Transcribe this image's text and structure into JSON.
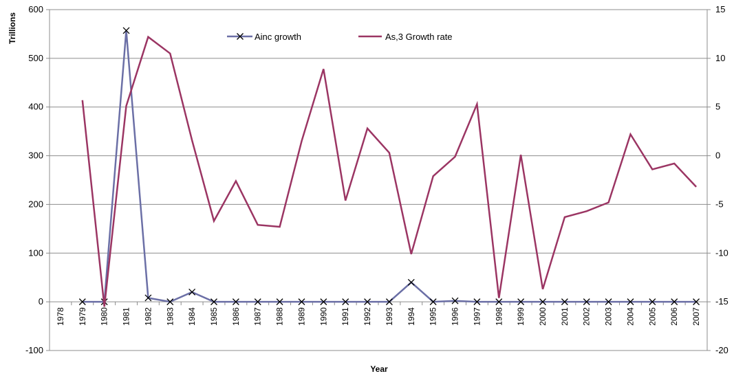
{
  "chart_data": {
    "type": "line",
    "xlabel": "Year",
    "ylabel_left": "Trillions",
    "ylabel_right": "",
    "y_left_lim": [
      -100,
      600
    ],
    "y_right_lim": [
      -20,
      15
    ],
    "y_left_ticks": [
      "-100",
      "0",
      "100",
      "200",
      "300",
      "400",
      "500",
      "600"
    ],
    "y_right_ticks": [
      "-20",
      "-15",
      "-10",
      "-5",
      "0",
      "5",
      "10",
      "15"
    ],
    "grid": "horizontal",
    "legend_position": "top-center",
    "x": [
      "1978",
      "1979",
      "1980",
      "1981",
      "1982",
      "1983",
      "1984",
      "1985",
      "1986",
      "1987",
      "1988",
      "1989",
      "1990",
      "1991",
      "1992",
      "1993",
      "1994",
      "1995",
      "1996",
      "1997",
      "1998",
      "1999",
      "2000",
      "2001",
      "2002",
      "2003",
      "2004",
      "2005",
      "2006",
      "2007"
    ],
    "series": [
      {
        "name": "Ainc growth",
        "axis": "left",
        "color": "#6b6fa6",
        "marker": "x",
        "values": [
          null,
          0,
          0,
          557,
          8,
          0,
          20,
          0,
          0,
          0,
          0,
          0,
          0,
          0,
          0,
          0,
          40,
          0,
          2,
          0,
          0,
          0,
          0,
          0,
          0,
          0,
          0,
          0,
          0,
          0
        ]
      },
      {
        "name": "As,3 Growth rate",
        "axis": "right",
        "color": "#9b3563",
        "marker": "none",
        "values": [
          null,
          5.7,
          -15.5,
          5.1,
          12.2,
          10.5,
          1.6,
          -6.7,
          -2.6,
          -7.1,
          -7.3,
          1.5,
          8.9,
          -4.6,
          2.8,
          0.3,
          -10.1,
          -2.1,
          -0.1,
          5.3,
          -14.6,
          0.1,
          -13.7,
          -6.3,
          -5.7,
          -4.8,
          2.2,
          -1.4,
          -0.8,
          -3.2
        ]
      }
    ]
  }
}
